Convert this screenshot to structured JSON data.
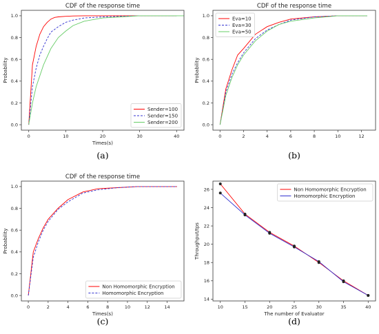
{
  "chart_data": [
    {
      "type": "line",
      "caption": "(a)",
      "title": "CDF of the response time",
      "xlabel": "Times(s)",
      "ylabel": "Probability",
      "xlim": [
        -2,
        42
      ],
      "ylim": [
        -0.05,
        1.05
      ],
      "xticks": [
        0,
        10,
        20,
        30,
        40
      ],
      "yticks": [
        0.0,
        0.2,
        0.4,
        0.6,
        0.8,
        1.0
      ],
      "tick_decimals": {
        "x": 0,
        "y": 1
      },
      "legend_position": "lower-right",
      "series": [
        {
          "name": "Sender=100",
          "color": "#ff0000",
          "dash": "",
          "x": [
            0,
            1,
            2,
            3,
            4,
            5,
            6,
            7,
            8,
            10,
            12,
            15,
            20,
            30,
            40
          ],
          "y": [
            0.0,
            0.55,
            0.72,
            0.83,
            0.9,
            0.94,
            0.97,
            0.985,
            0.99,
            0.995,
            0.998,
            1.0,
            1.0,
            1.0,
            1.0
          ]
        },
        {
          "name": "Sender=150",
          "color": "#3030d0",
          "dash": "3,2",
          "x": [
            0,
            1,
            2,
            3,
            4,
            5,
            6,
            8,
            10,
            12,
            15,
            20,
            30,
            40
          ],
          "y": [
            0.0,
            0.35,
            0.52,
            0.64,
            0.72,
            0.79,
            0.85,
            0.9,
            0.94,
            0.96,
            0.98,
            0.99,
            1.0,
            1.0
          ]
        },
        {
          "name": "Sender=200",
          "color": "#66cc66",
          "dash": "",
          "x": [
            0,
            1,
            2,
            4,
            6,
            8,
            10,
            12,
            15,
            20,
            25,
            30,
            40,
            42
          ],
          "y": [
            0.0,
            0.2,
            0.35,
            0.55,
            0.7,
            0.8,
            0.86,
            0.91,
            0.95,
            0.98,
            0.99,
            1.0,
            1.0,
            1.0
          ]
        }
      ]
    },
    {
      "type": "line",
      "caption": "(b)",
      "title": "CDF of the response time",
      "xlabel": "",
      "ylabel": "Probability",
      "xlim": [
        -0.6,
        13.2
      ],
      "ylim": [
        -0.05,
        1.05
      ],
      "xticks": [
        0,
        2,
        4,
        6,
        8,
        10,
        12
      ],
      "yticks": [
        0.0,
        0.2,
        0.4,
        0.6,
        0.8,
        1.0
      ],
      "tick_decimals": {
        "x": 0,
        "y": 1
      },
      "legend_position": "upper-left",
      "series": [
        {
          "name": "Eva=10",
          "color": "#ff0000",
          "dash": "",
          "x": [
            0,
            0.5,
            1,
            1.5,
            2,
            3,
            4,
            5,
            6,
            8,
            10,
            12.5
          ],
          "y": [
            0.0,
            0.33,
            0.5,
            0.64,
            0.7,
            0.83,
            0.9,
            0.94,
            0.97,
            0.99,
            1.0,
            1.0
          ]
        },
        {
          "name": "Eva=30",
          "color": "#3030d0",
          "dash": "3,2",
          "x": [
            0,
            0.5,
            1,
            1.5,
            2,
            3,
            4,
            5,
            6,
            8,
            10,
            12.5
          ],
          "y": [
            0.0,
            0.3,
            0.46,
            0.57,
            0.66,
            0.79,
            0.87,
            0.92,
            0.96,
            0.99,
            1.0,
            1.0
          ]
        },
        {
          "name": "Eva=50",
          "color": "#66cc66",
          "dash": "",
          "x": [
            0,
            0.5,
            1,
            1.5,
            2,
            3,
            4,
            5,
            6,
            8,
            10,
            12.5
          ],
          "y": [
            0.0,
            0.27,
            0.43,
            0.55,
            0.64,
            0.77,
            0.86,
            0.92,
            0.95,
            0.98,
            1.0,
            1.0
          ]
        }
      ]
    },
    {
      "type": "line",
      "caption": "(c)",
      "title": "CDF of the response time",
      "xlabel": "Times(s)",
      "ylabel": "Probability",
      "xlim": [
        -0.7,
        15.7
      ],
      "ylim": [
        -0.05,
        1.05
      ],
      "xticks": [
        0,
        2,
        4,
        6,
        8,
        10,
        12,
        14
      ],
      "yticks": [
        0.0,
        0.2,
        0.4,
        0.6,
        0.8,
        1.0
      ],
      "tick_decimals": {
        "x": 0,
        "y": 1
      },
      "legend_position": "lower-right",
      "series": [
        {
          "name": "Non Homomorphic Encryption",
          "color": "#ff0000",
          "dash": "",
          "x": [
            0,
            0.5,
            1,
            1.5,
            2,
            3,
            4,
            5.5,
            7,
            9,
            11,
            15
          ],
          "y": [
            0.0,
            0.4,
            0.52,
            0.62,
            0.7,
            0.8,
            0.88,
            0.95,
            0.98,
            0.99,
            1.0,
            1.0
          ]
        },
        {
          "name": "Homomorphic Encryption",
          "color": "#3030d0",
          "dash": "3,2",
          "x": [
            0,
            0.5,
            1,
            1.5,
            2,
            3,
            4,
            5.5,
            7,
            9,
            11,
            15
          ],
          "y": [
            0.0,
            0.35,
            0.49,
            0.6,
            0.68,
            0.79,
            0.86,
            0.94,
            0.97,
            0.99,
            1.0,
            1.0
          ]
        }
      ]
    },
    {
      "type": "line",
      "caption": "(d)",
      "title": "",
      "xlabel": "The number of Evaluator",
      "ylabel": "Throughput/tps",
      "xlim": [
        8.5,
        41.5
      ],
      "ylim": [
        13.8,
        26.9
      ],
      "xticks": [
        10,
        15,
        20,
        25,
        30,
        35,
        40
      ],
      "yticks": [
        14,
        16,
        18,
        20,
        22,
        24,
        26
      ],
      "tick_decimals": {
        "x": 0,
        "y": 0
      },
      "legend_position": "upper-right",
      "markers": true,
      "series": [
        {
          "name": "Non Homomorphic Encryption",
          "color": "#ff0000",
          "dash": "",
          "x": [
            10,
            15,
            20,
            25,
            30,
            35,
            40
          ],
          "y": [
            26.6,
            23.3,
            21.3,
            19.8,
            18.0,
            16.0,
            14.4
          ]
        },
        {
          "name": "Homomorphic Encryption",
          "color": "#3030d0",
          "dash": "",
          "x": [
            10,
            15,
            20,
            25,
            30,
            35,
            40
          ],
          "y": [
            25.6,
            23.2,
            21.2,
            19.7,
            18.1,
            15.9,
            14.4
          ]
        }
      ]
    }
  ]
}
